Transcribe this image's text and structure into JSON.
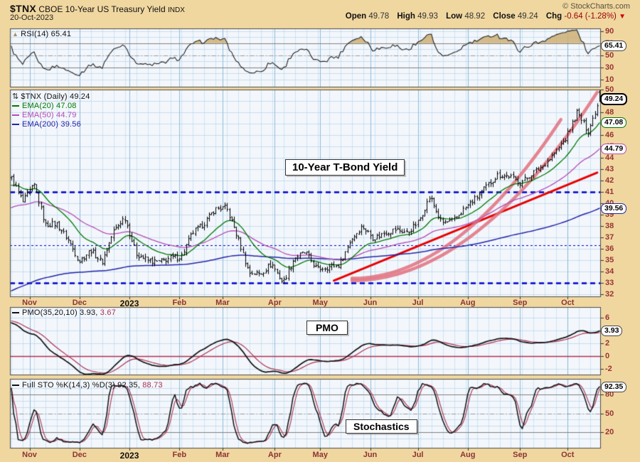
{
  "header": {
    "symbol": "$TNX",
    "title": "CBOE 10-Year US Treasury Yield",
    "exchange": "INDX",
    "date": "20-Oct-2023",
    "copyright": "© StockCharts.com",
    "quote": {
      "open_label": "Open",
      "open": "49.78",
      "high_label": "High",
      "high": "49.93",
      "low_label": "Low",
      "low": "48.92",
      "close_label": "Close",
      "close": "49.24",
      "chg_label": "Chg",
      "chg": "-0.64 (-1.28%)",
      "chg_arrow": "▼"
    }
  },
  "panels": {
    "rsi": {
      "legend": "RSI(14) 65.41"
    },
    "price": {
      "legend": "$TNX (Daily) 49.24",
      "emas": [
        {
          "label": "EMA(20) 47.08",
          "color": "#007800"
        },
        {
          "label": "EMA(50) 44.79",
          "color": "#b44cb4"
        },
        {
          "label": "EMA(200) 39.56",
          "color": "#2424a8"
        }
      ],
      "annotation": "10-Year T-Bond Yield"
    },
    "pmo": {
      "legend": "PMO(35,20,10) 3.93,",
      "signal_value": "3.67",
      "annotation": "PMO"
    },
    "sto": {
      "legend": "Full STO %K(14,3) %D(3) 92.35,",
      "signal_value": "88.73",
      "annotation": "Stochastics"
    }
  },
  "chart_data": {
    "type": "ohlc",
    "title": "$TNX CBOE 10-Year US Treasury Yield (Daily)",
    "date_range": "Oct-2022 to 20-Oct-2023",
    "months": [
      {
        "label": "Nov",
        "day": 8
      },
      {
        "label": "Dec",
        "day": 30
      },
      {
        "label": "2023",
        "day": 52,
        "year": true
      },
      {
        "label": "Feb",
        "day": 74
      },
      {
        "label": "Mar",
        "day": 93
      },
      {
        "label": "Apr",
        "day": 116
      },
      {
        "label": "May",
        "day": 136
      },
      {
        "label": "Jun",
        "day": 158
      },
      {
        "label": "Jul",
        "day": 179
      },
      {
        "label": "Aug",
        "day": 201
      },
      {
        "label": "Sep",
        "day": 224
      },
      {
        "label": "Oct",
        "day": 245
      }
    ],
    "price": {
      "ylim": [
        31.75,
        50.3
      ],
      "yticks": [
        50,
        49,
        48,
        47,
        46,
        45,
        44,
        43,
        42,
        41,
        40,
        39,
        38,
        37,
        36,
        35,
        34,
        33,
        32
      ],
      "weekly_closes": [
        42.2,
        40.1,
        41.6,
        38.1,
        38.2,
        36.8,
        34.9,
        35.9,
        34.8,
        37.5,
        38.8,
        35.6,
        35.0,
        34.8,
        35.2,
        35.3,
        37.4,
        38.2,
        39.5,
        39.6,
        37.0,
        33.9,
        33.8,
        34.7,
        33.0,
        35.2,
        35.7,
        34.2,
        34.4,
        34.6,
        36.8,
        38.0,
        36.9,
        37.4,
        37.7,
        37.4,
        38.4,
        40.6,
        38.3,
        38.4,
        39.5,
        40.4,
        41.5,
        42.5,
        42.4,
        41.8,
        42.6,
        43.3,
        44.4,
        45.7,
        48.0,
        46.3,
        49.2
      ],
      "last_bar": {
        "open": 49.78,
        "high": 49.93,
        "low": 48.92,
        "close": 49.24
      },
      "emas": [
        {
          "period": 20,
          "last": 47.08
        },
        {
          "period": 50,
          "last": 44.79
        },
        {
          "period": 200,
          "last": 39.56
        }
      ],
      "support_levels": [
        {
          "value": 41.0,
          "weight": "bold"
        },
        {
          "value": 36.3,
          "weight": "thin"
        },
        {
          "value": 33.0,
          "weight": "bold"
        }
      ],
      "trendline": {
        "from_day": 142,
        "from_price": 33.2,
        "to_day": 258,
        "to_price": 42.7
      },
      "parabolas": [
        {
          "start_day": 150,
          "start_price": 33.4,
          "curvature": 0.00165,
          "end_day": 242
        },
        {
          "start_day": 150,
          "start_price": 33.2,
          "curvature": 0.00142,
          "end_day": 258
        }
      ]
    },
    "rsi": {
      "period": 14,
      "last": 65.41,
      "yticks": [
        90,
        70,
        50,
        30,
        10
      ],
      "overbought": 70,
      "mid": 50,
      "oversold": 30
    },
    "pmo": {
      "periods": [
        35,
        20,
        10
      ],
      "last": 3.93,
      "signal_last": 3.67,
      "yticks": [
        6,
        4,
        2,
        0,
        -2
      ],
      "zero_line": 0
    },
    "sto": {
      "periods": "%K(14,3) %D(3)",
      "k_last": 92.35,
      "d_last": 88.73,
      "yticks": [
        80,
        50,
        20
      ],
      "overbought": 80,
      "mid": 50,
      "oversold": 20
    },
    "badges": [
      {
        "panel": "rsi",
        "value": 65.41,
        "label": "65.41",
        "color": "#444444",
        "bold": false
      },
      {
        "panel": "price",
        "value": 49.24,
        "label": "49.24",
        "color": "#000000",
        "bold": true
      },
      {
        "panel": "price",
        "value": 47.08,
        "label": "47.08",
        "color": "#007800",
        "bold": false
      },
      {
        "panel": "price",
        "value": 44.79,
        "label": "44.79",
        "color": "#b44cb4",
        "bold": false
      },
      {
        "panel": "price",
        "value": 39.56,
        "label": "39.56",
        "color": "#2424a8",
        "bold": false
      },
      {
        "panel": "pmo",
        "value": 3.93,
        "label": "3.93",
        "color": "#444444",
        "bold": false
      },
      {
        "panel": "sto",
        "value": 92.35,
        "label": "92.35",
        "color": "#444444",
        "bold": false
      }
    ],
    "colors": {
      "background": "#f0d7a0",
      "plot_bg": "#f3f7fc",
      "bars": "#000000",
      "ema20": "#007800",
      "ema50": "#b44cb4",
      "ema200": "#2424a8",
      "support": "#0000cc",
      "trendline": "#e80000",
      "parabola": "#e2707e",
      "indicator_main": "#111111",
      "indicator_signal": "#b03050",
      "axis_text": "#993333",
      "grid_minor": "rgba(150,200,228,0.38)",
      "grid_month": "rgba(108,168,204,0.75)",
      "grid_h": "rgba(160,195,225,0.5)",
      "band_line": "#808080",
      "overbought_fill": "rgba(205,175,115,0.85)"
    }
  }
}
